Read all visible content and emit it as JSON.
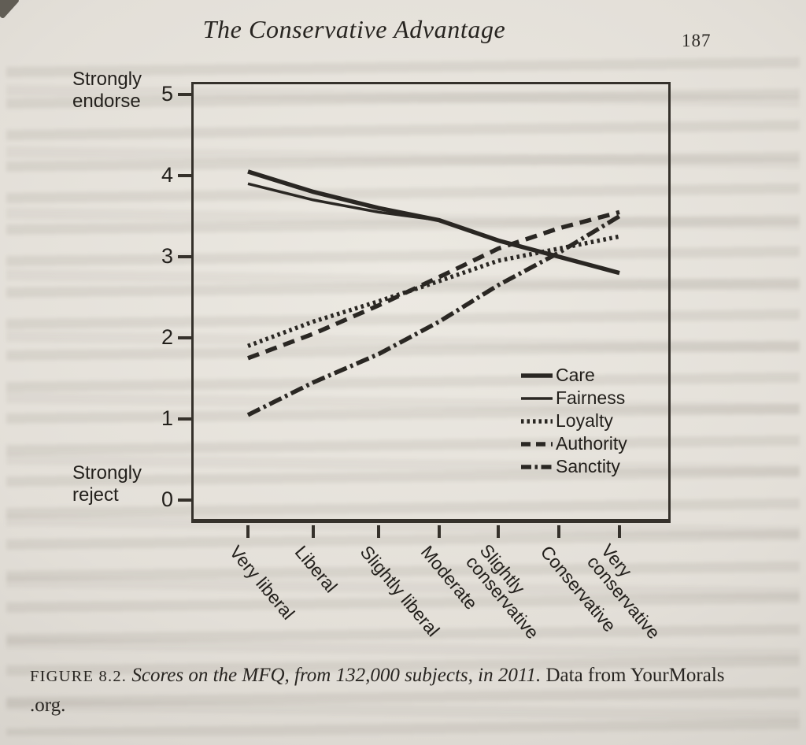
{
  "page": {
    "header_title": "The Conservative Advantage",
    "page_number": "187"
  },
  "chart_data": {
    "type": "line",
    "title": "",
    "categories": [
      "Very liberal",
      "Liberal",
      "Slightly liberal",
      "Moderate",
      "Slightly conservative",
      "Conservative",
      "Very conservative"
    ],
    "series": [
      {
        "name": "Care",
        "style": "solid-thick",
        "values": [
          4.05,
          3.8,
          3.6,
          3.45,
          3.2,
          3.0,
          2.8
        ]
      },
      {
        "name": "Fairness",
        "style": "solid",
        "values": [
          3.9,
          3.7,
          3.55,
          3.45,
          3.2,
          3.0,
          2.8
        ]
      },
      {
        "name": "Loyalty",
        "style": "dotted",
        "values": [
          1.9,
          2.2,
          2.45,
          2.7,
          2.95,
          3.1,
          3.25
        ]
      },
      {
        "name": "Authority",
        "style": "dashed",
        "values": [
          1.75,
          2.05,
          2.4,
          2.75,
          3.1,
          3.35,
          3.55
        ]
      },
      {
        "name": "Sanctity",
        "style": "dashdot",
        "values": [
          1.05,
          1.45,
          1.8,
          2.2,
          2.65,
          3.05,
          3.5
        ]
      }
    ],
    "y_axis": {
      "ticks": [
        "0",
        "1",
        "2",
        "3",
        "4",
        "5"
      ],
      "ylim": [
        0,
        5
      ],
      "top_label": "Strongly endorse",
      "bottom_label": "Strongly reject"
    },
    "grid": "off",
    "legend_position": "inside-right",
    "line_color": "#2a2723"
  },
  "caption": {
    "figure_label": "FIGURE 8.2.",
    "title_italic": "Scores on the MFQ, from 132,000 subjects, in 2011.",
    "source_roman": "Data from YourMorals",
    "source_line2": ".org."
  }
}
